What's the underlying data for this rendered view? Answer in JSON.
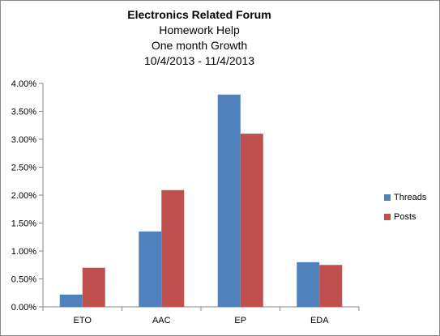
{
  "chart_data": {
    "type": "bar",
    "title": "Electronics Related Forum",
    "subtitle_lines": [
      "Homework Help",
      "One month Growth",
      "10/4/2013  - 11/4/2013"
    ],
    "categories": [
      "ETO",
      "AAC",
      "EP",
      "EDA"
    ],
    "series": [
      {
        "name": "Threads",
        "color": "#4f81bd",
        "values": [
          0.22,
          1.35,
          3.8,
          0.8
        ]
      },
      {
        "name": "Posts",
        "color": "#c0504d",
        "values": [
          0.7,
          2.09,
          3.1,
          0.75
        ]
      }
    ],
    "ylim": [
      0,
      4.0
    ],
    "y_ticks": [
      "0.00%",
      "0.50%",
      "1.00%",
      "1.50%",
      "2.00%",
      "2.50%",
      "3.00%",
      "3.50%",
      "4.00%"
    ],
    "y_unit": "%",
    "grid": false,
    "legend_position": "right"
  }
}
